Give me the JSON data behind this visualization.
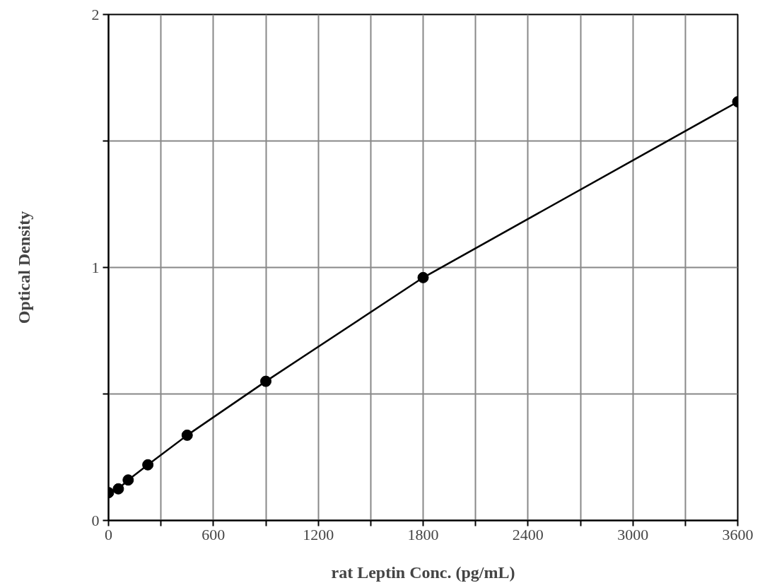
{
  "chart_data": {
    "type": "line",
    "xlabel": "rat Leptin Conc. (pg/mL)",
    "ylabel": "Optical Density",
    "x": [
      0,
      56.25,
      112.5,
      225,
      450,
      900,
      1800,
      3600
    ],
    "series": [
      {
        "color": "#000000",
        "values": [
          0.11,
          0.125,
          0.16,
          0.22,
          0.337,
          0.55,
          0.96,
          1.655
        ]
      }
    ],
    "xlim": [
      0,
      3600
    ],
    "xticks": [
      0,
      {
        "value": 300,
        "label": null
      },
      600,
      {
        "value": 900,
        "label": null
      },
      1200,
      {
        "value": 1500,
        "label": null
      },
      1800,
      {
        "value": 2100,
        "label": null
      },
      2400,
      {
        "value": 2700,
        "label": null
      },
      3000,
      {
        "value": 3300,
        "label": null
      },
      3600
    ],
    "ylim": [
      0,
      2
    ],
    "yticks": [
      0,
      {
        "value": 0.5,
        "label": null
      },
      1,
      {
        "value": 1.5,
        "label": null
      },
      2
    ],
    "grid": true,
    "marker": "circle",
    "line_style": "solid"
  }
}
